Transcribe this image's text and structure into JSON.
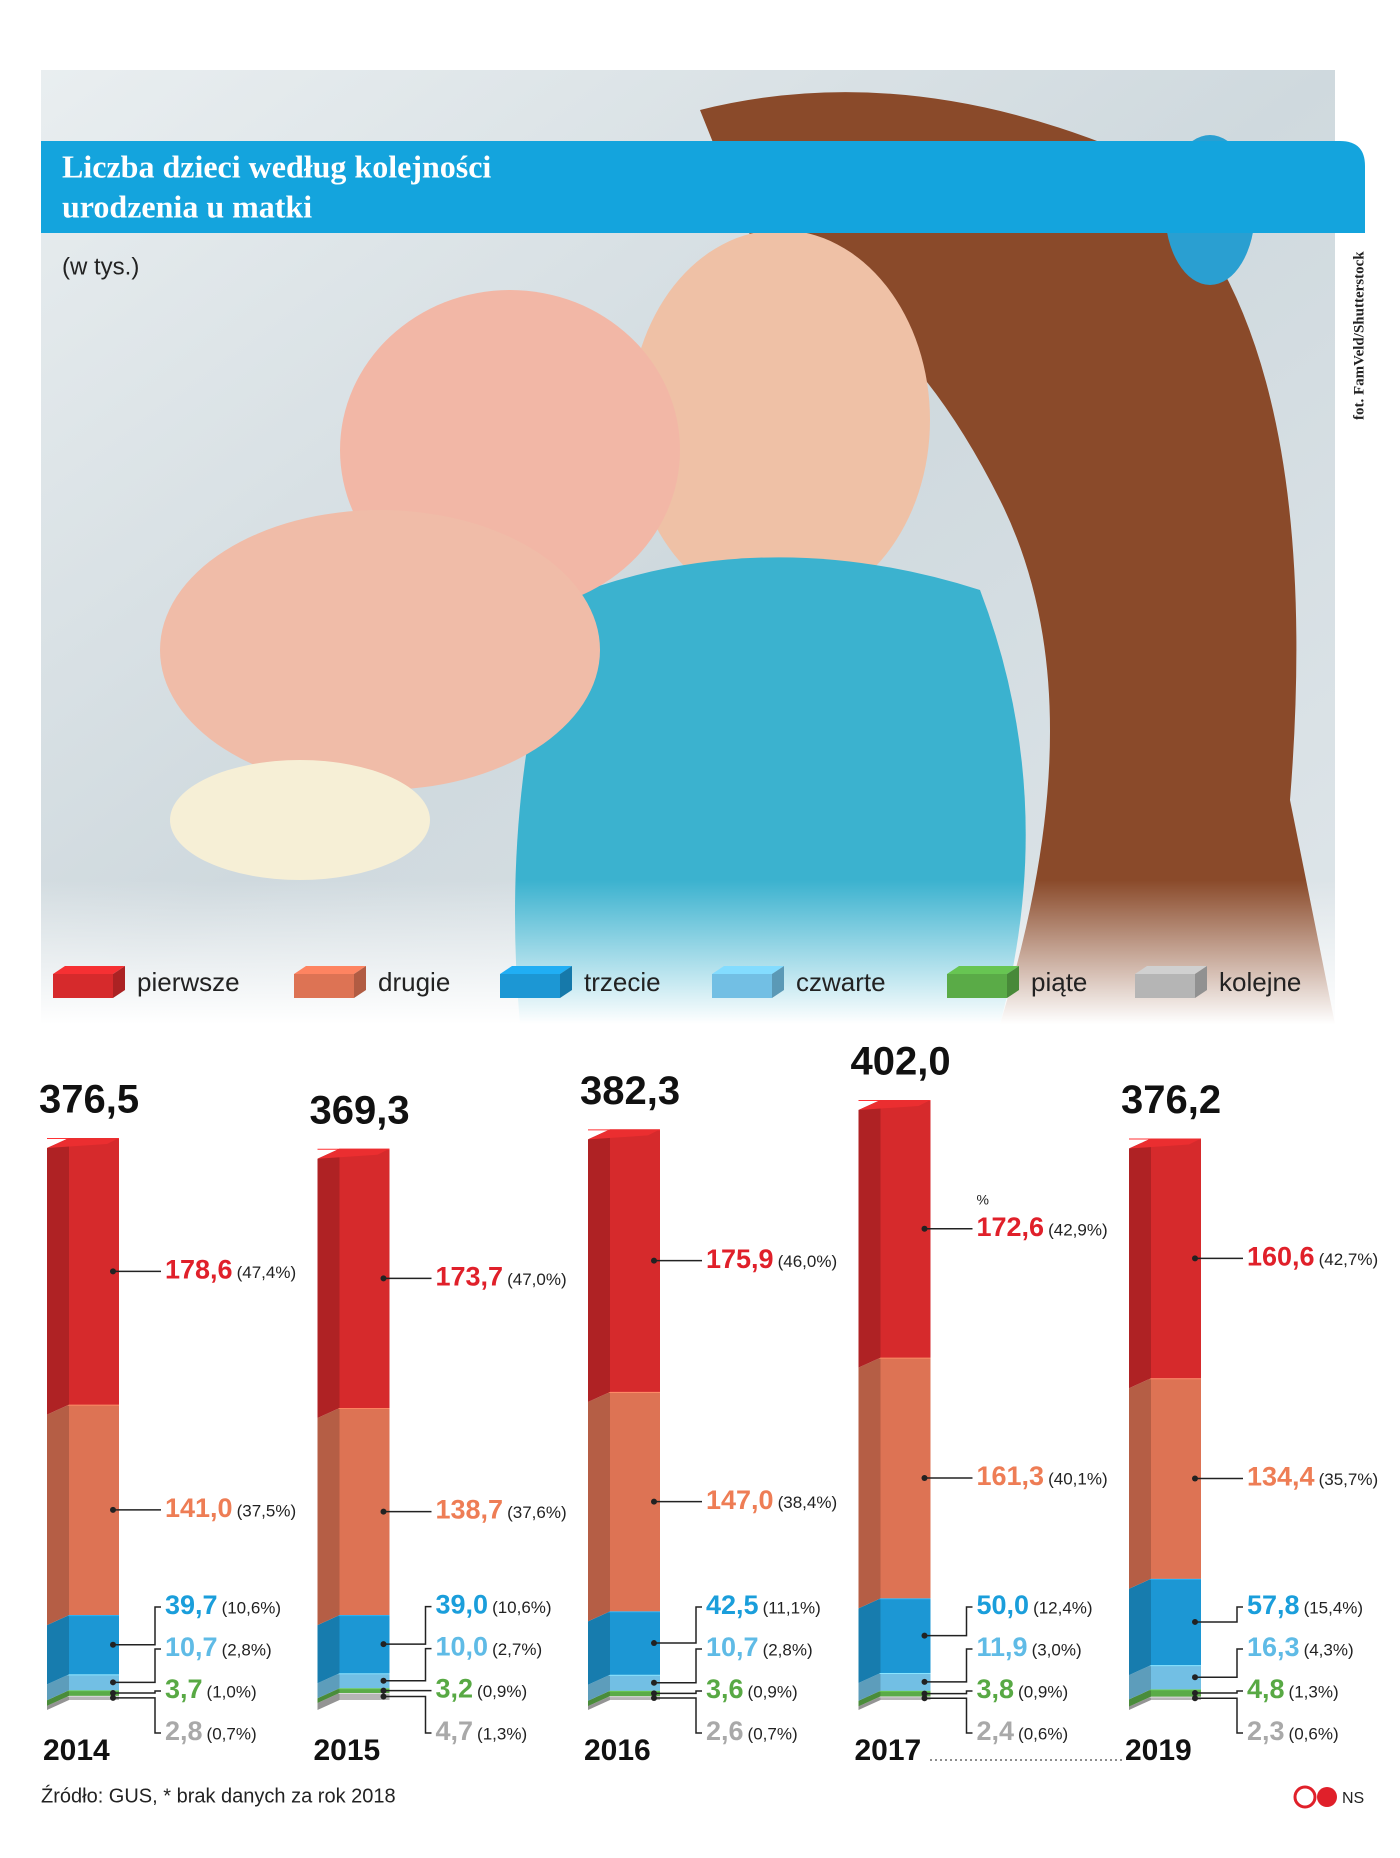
{
  "chart_data": {
    "type": "stacked_bar",
    "title": [
      "Liczba dzieci według kolejności",
      "urodzenia u matki"
    ],
    "subtitle": "(w tys.)",
    "photo_credit": "fot. FamVeld/Shutterstock",
    "annotation": "%",
    "source": "Źródło: GUS, * brak danych za rok 2018",
    "author": "NS",
    "categories": [
      "2014",
      "2015",
      "2016",
      "2017",
      "2019"
    ],
    "totals": [
      376.5,
      369.3,
      382.3,
      402.0,
      376.2
    ],
    "total_labels": [
      "376,5",
      "369,3",
      "382,3",
      "402,0",
      "376,2"
    ],
    "series": [
      {
        "name": "pierwsze",
        "color": "#d62a2c",
        "label_color": "#e0202a",
        "values": [
          178.6,
          173.7,
          175.9,
          172.6,
          160.6
        ],
        "value_labels": [
          "178,6",
          "173,7",
          "175,9",
          "172,6",
          "160,6"
        ],
        "shares": [
          47.4,
          47.0,
          46.0,
          42.9,
          42.7
        ],
        "share_labels": [
          "(47,4%)",
          "(47,0%)",
          "(46,0%)",
          "(42,9%)",
          "(42,7%)"
        ]
      },
      {
        "name": "drugie",
        "color": "#dd7354",
        "label_color": "#ee7d55",
        "values": [
          141.0,
          138.7,
          147.0,
          161.3,
          134.4
        ],
        "value_labels": [
          "141,0",
          "138,7",
          "147,0",
          "161,3",
          "134,4"
        ],
        "shares": [
          37.5,
          37.6,
          38.4,
          40.1,
          35.7
        ],
        "share_labels": [
          "(37,5%)",
          "(37,6%)",
          "(38,4%)",
          "(40,1%)",
          "(35,7%)"
        ]
      },
      {
        "name": "trzecie",
        "color": "#1c97d4",
        "label_color": "#1a9edb",
        "values": [
          39.7,
          39.0,
          42.5,
          50.0,
          57.8
        ],
        "value_labels": [
          "39,7",
          "39,0",
          "42,5",
          "50,0",
          "57,8"
        ],
        "shares": [
          10.6,
          10.6,
          11.1,
          12.4,
          15.4
        ],
        "share_labels": [
          "(10,6%)",
          "(10,6%)",
          "(11,1%)",
          "(12,4%)",
          "(15,4%)"
        ]
      },
      {
        "name": "czwarte",
        "color": "#72bfe4",
        "label_color": "#5fbbe6",
        "values": [
          10.7,
          10.0,
          10.7,
          11.9,
          16.3
        ],
        "value_labels": [
          "10,7",
          "10,0",
          "10,7",
          "11,9",
          "16,3"
        ],
        "shares": [
          2.8,
          2.7,
          2.8,
          3.0,
          4.3
        ],
        "share_labels": [
          "(2,8%)",
          "(2,7%)",
          "(2,8%)",
          "(3,0%)",
          "(4,3%)"
        ]
      },
      {
        "name": "piąte",
        "color": "#5aab47",
        "label_color": "#58a944",
        "values": [
          3.7,
          3.2,
          3.6,
          3.8,
          4.8
        ],
        "value_labels": [
          "3,7",
          "3,2",
          "3,6",
          "3,8",
          "4,8"
        ],
        "shares": [
          1.0,
          0.9,
          0.9,
          0.9,
          1.3
        ],
        "share_labels": [
          "(1,0%)",
          "(0,9%)",
          "(0,9%)",
          "(0,9%)",
          "(1,3%)"
        ]
      },
      {
        "name": "kolejne",
        "color": "#b5b5b5",
        "label_color": "#a9a9a9",
        "values": [
          2.8,
          4.7,
          2.6,
          2.4,
          2.3
        ],
        "value_labels": [
          "2,8",
          "4,7",
          "2,6",
          "2,4",
          "2,3"
        ],
        "shares": [
          0.7,
          1.3,
          0.7,
          0.6,
          0.6
        ],
        "share_labels": [
          "(0,7%)",
          "(1,3%)",
          "(0,7%)",
          "(0,6%)",
          "(0,6%)"
        ]
      }
    ]
  }
}
